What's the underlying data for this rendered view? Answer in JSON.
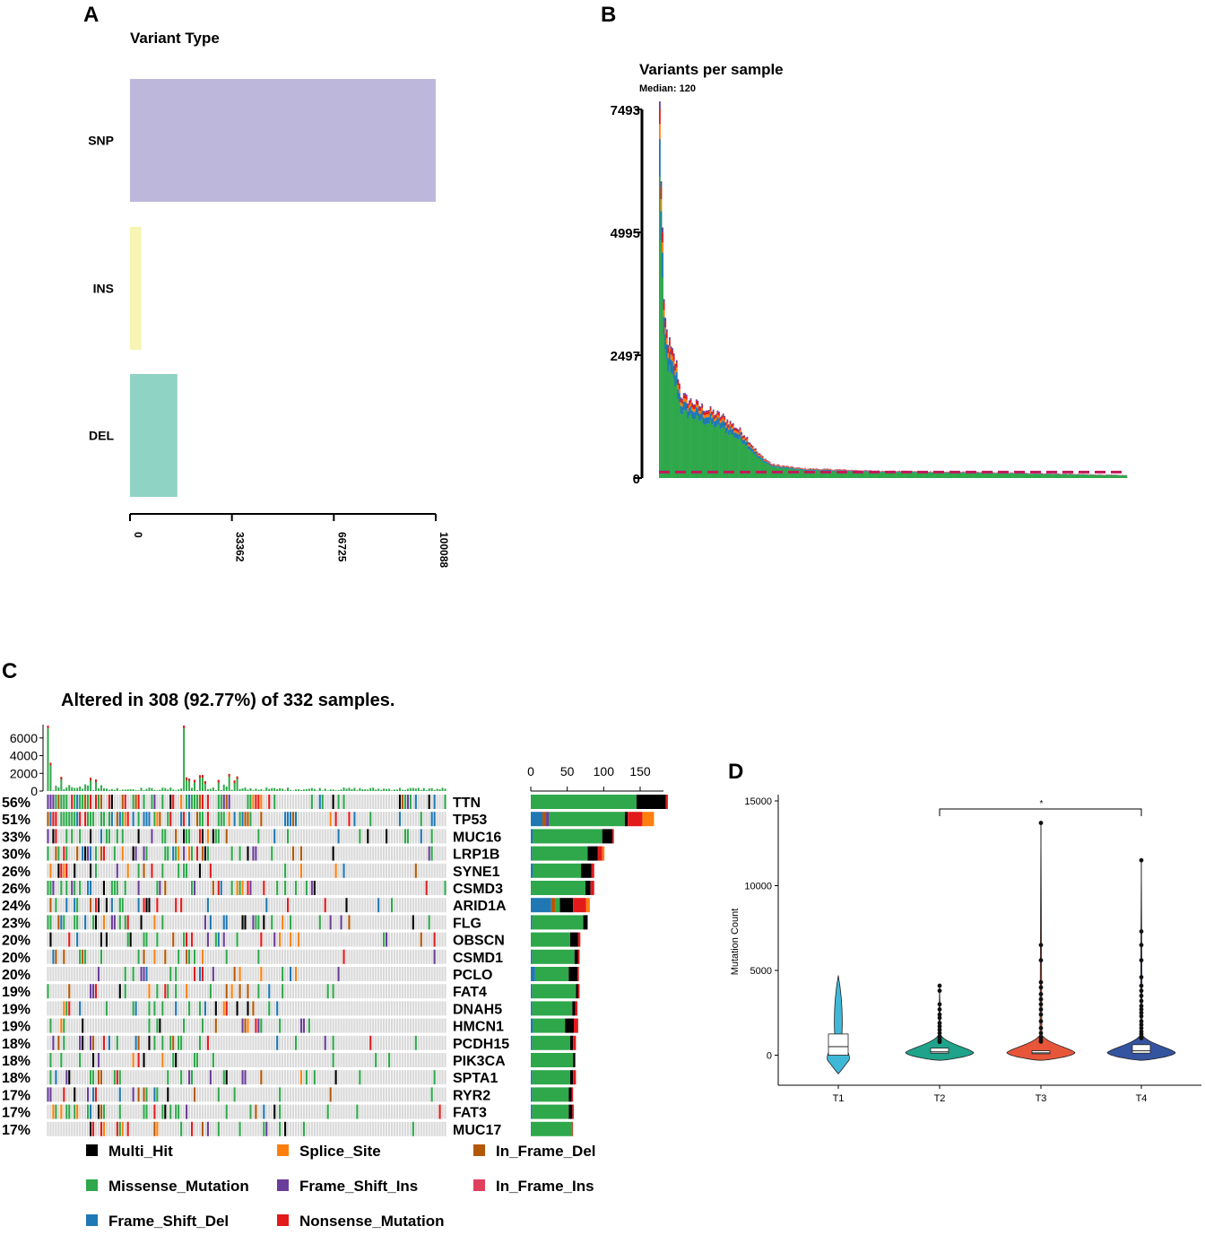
{
  "panels": {
    "a": {
      "letter": "A"
    },
    "b": {
      "letter": "B"
    },
    "c": {
      "letter": "C"
    },
    "d": {
      "letter": "D"
    }
  },
  "chart_data": [
    {
      "id": "variant-type",
      "type": "bar",
      "orientation": "horizontal",
      "title": "Variant Type",
      "categories": [
        "SNP",
        "INS",
        "DEL"
      ],
      "values": [
        100088,
        3700,
        15500
      ],
      "colors": [
        "#bdb8db",
        "#f7f5b3",
        "#8fd3c5"
      ],
      "xticks": [
        0,
        33362,
        66725,
        100088
      ],
      "xlim": [
        0,
        100088
      ]
    },
    {
      "id": "variants-per-sample",
      "type": "bar",
      "title": "Variants per sample",
      "subtitle": "Median: 120",
      "yticks": [
        0,
        2497,
        4995,
        7493
      ],
      "ylim": [
        0,
        7493
      ],
      "median": 120,
      "n_samples": 332,
      "profile": [
        [
          0,
          7493
        ],
        [
          1,
          6200
        ],
        [
          2,
          5000
        ],
        [
          3,
          3400
        ],
        [
          5,
          2950
        ],
        [
          8,
          2600
        ],
        [
          12,
          2300
        ],
        [
          15,
          1700
        ],
        [
          20,
          1600
        ],
        [
          30,
          1450
        ],
        [
          45,
          1250
        ],
        [
          60,
          900
        ],
        [
          70,
          500
        ],
        [
          80,
          280
        ],
        [
          100,
          200
        ],
        [
          150,
          150
        ],
        [
          250,
          110
        ],
        [
          332,
          60
        ]
      ],
      "stack_colors": [
        "#2ea84a",
        "#1f78b4",
        "#ff7f0e",
        "#e31a1c",
        "#6a3d9a"
      ]
    },
    {
      "id": "oncoplot",
      "type": "heatmap",
      "title": "Altered in 308 (92.77%) of 332 samples.",
      "tmb_yticks": [
        0,
        2000,
        4000,
        6000
      ],
      "gene_bar_xticks": [
        0,
        50,
        100,
        150
      ],
      "genes": [
        {
          "name": "TTN",
          "pct": "56%",
          "freq": 0.56,
          "counts": {
            "Missense_Mutation": 145,
            "Multi_Hit": 40,
            "Nonsense_Mutation": 3
          }
        },
        {
          "name": "TP53",
          "pct": "51%",
          "freq": 0.51,
          "counts": {
            "Frame_Shift_Del": 16,
            "In_Frame_Del": 5,
            "Frame_Shift_Ins": 4,
            "Missense_Mutation": 104,
            "Multi_Hit": 4,
            "Nonsense_Mutation": 20,
            "Splice_Site": 16
          }
        },
        {
          "name": "MUC16",
          "pct": "33%",
          "freq": 0.33,
          "counts": {
            "Frame_Shift_Del": 3,
            "Missense_Mutation": 95,
            "Multi_Hit": 14,
            "Nonsense_Mutation": 2
          }
        },
        {
          "name": "LRP1B",
          "pct": "30%",
          "freq": 0.3,
          "counts": {
            "Frame_Shift_Del": 2,
            "Missense_Mutation": 76,
            "Multi_Hit": 14,
            "Nonsense_Mutation": 6,
            "Splice_Site": 3
          }
        },
        {
          "name": "SYNE1",
          "pct": "26%",
          "freq": 0.26,
          "counts": {
            "Frame_Shift_Del": 3,
            "Missense_Mutation": 66,
            "Multi_Hit": 14,
            "Nonsense_Mutation": 4
          }
        },
        {
          "name": "CSMD3",
          "pct": "26%",
          "freq": 0.26,
          "counts": {
            "Missense_Mutation": 75,
            "Multi_Hit": 7,
            "Nonsense_Mutation": 5
          }
        },
        {
          "name": "ARID1A",
          "pct": "24%",
          "freq": 0.24,
          "counts": {
            "Frame_Shift_Del": 28,
            "In_Frame_Del": 6,
            "Missense_Mutation": 6,
            "Multi_Hit": 18,
            "Nonsense_Mutation": 18,
            "Splice_Site": 5
          }
        },
        {
          "name": "FLG",
          "pct": "23%",
          "freq": 0.23,
          "counts": {
            "Frame_Shift_Del": 2,
            "Missense_Mutation": 70,
            "Multi_Hit": 6
          }
        },
        {
          "name": "OBSCN",
          "pct": "20%",
          "freq": 0.2,
          "counts": {
            "Missense_Mutation": 54,
            "Multi_Hit": 11,
            "Nonsense_Mutation": 3
          }
        },
        {
          "name": "CSMD1",
          "pct": "20%",
          "freq": 0.2,
          "counts": {
            "Frame_Shift_Del": 2,
            "Missense_Mutation": 58,
            "Multi_Hit": 5,
            "Nonsense_Mutation": 2
          }
        },
        {
          "name": "PCLO",
          "pct": "20%",
          "freq": 0.2,
          "counts": {
            "Frame_Shift_Del": 6,
            "Missense_Mutation": 46,
            "Multi_Hit": 12,
            "Nonsense_Mutation": 2
          }
        },
        {
          "name": "FAT4",
          "pct": "19%",
          "freq": 0.19,
          "counts": {
            "Frame_Shift_Del": 2,
            "Missense_Mutation": 60,
            "Multi_Hit": 3,
            "Nonsense_Mutation": 2
          }
        },
        {
          "name": "DNAH5",
          "pct": "19%",
          "freq": 0.19,
          "counts": {
            "Frame_Shift_Del": 2,
            "Missense_Mutation": 55,
            "Multi_Hit": 4,
            "Nonsense_Mutation": 3
          }
        },
        {
          "name": "HMCN1",
          "pct": "19%",
          "freq": 0.19,
          "counts": {
            "Frame_Shift_Del": 3,
            "Missense_Mutation": 44,
            "Multi_Hit": 12,
            "Nonsense_Mutation": 6
          }
        },
        {
          "name": "PCDH15",
          "pct": "18%",
          "freq": 0.18,
          "counts": {
            "Frame_Shift_Del": 2,
            "Missense_Mutation": 52,
            "Multi_Hit": 4,
            "Nonsense_Mutation": 4
          }
        },
        {
          "name": "PIK3CA",
          "pct": "18%",
          "freq": 0.18,
          "counts": {
            "Missense_Mutation": 58,
            "Multi_Hit": 3
          }
        },
        {
          "name": "SPTA1",
          "pct": "18%",
          "freq": 0.18,
          "counts": {
            "Frame_Shift_Del": 2,
            "Missense_Mutation": 52,
            "Multi_Hit": 4,
            "Nonsense_Mutation": 4
          }
        },
        {
          "name": "RYR2",
          "pct": "17%",
          "freq": 0.17,
          "counts": {
            "Frame_Shift_Del": 2,
            "Missense_Mutation": 50,
            "Multi_Hit": 4,
            "Nonsense_Mutation": 2
          }
        },
        {
          "name": "FAT3",
          "pct": "17%",
          "freq": 0.17,
          "counts": {
            "Frame_Shift_Del": 2,
            "Missense_Mutation": 50,
            "Multi_Hit": 5,
            "Nonsense_Mutation": 2
          }
        },
        {
          "name": "MUC17",
          "pct": "17%",
          "freq": 0.17,
          "counts": {
            "Frame_Shift_Del": 1,
            "Missense_Mutation": 56,
            "Nonsense_Mutation": 1
          }
        }
      ],
      "legend": [
        {
          "label": "Multi_Hit",
          "color": "#000000"
        },
        {
          "label": "Splice_Site",
          "color": "#ff7f0e"
        },
        {
          "label": "In_Frame_Del",
          "color": "#b35806"
        },
        {
          "label": "Missense_Mutation",
          "color": "#2ea84a"
        },
        {
          "label": "Frame_Shift_Ins",
          "color": "#6a3d9a"
        },
        {
          "label": "In_Frame_Ins",
          "color": "#e0405e"
        },
        {
          "label": "Frame_Shift_Del",
          "color": "#1f78b4"
        },
        {
          "label": "Nonsense_Mutation",
          "color": "#e31a1c"
        }
      ]
    },
    {
      "id": "mutation-count",
      "type": "violin",
      "ylabel": "Mutation Count",
      "categories": [
        "T1",
        "T2",
        "T3",
        "T4"
      ],
      "yticks": [
        0,
        5000,
        10000,
        15000
      ],
      "ylim": [
        -1500,
        15500
      ],
      "colors": [
        "#3fb8d8",
        "#1fa38b",
        "#e8563a",
        "#3454a0"
      ],
      "box": [
        {
          "q1": 0,
          "median": 500,
          "q3": 1250
        },
        {
          "q1": 120,
          "median": 200,
          "q3": 420
        },
        {
          "q1": 80,
          "median": 140,
          "q3": 260
        },
        {
          "q1": 120,
          "median": 260,
          "q3": 620
        }
      ],
      "max": [
        4700,
        4100,
        13700,
        11500
      ],
      "outliers": [
        [],
        [
          4100,
          3800,
          3000,
          2700,
          2400,
          2200,
          1900,
          1700,
          1500,
          1300,
          1100,
          950,
          850,
          780
        ],
        [
          13700,
          6500,
          5600,
          4300,
          4000,
          3600,
          3300,
          3000,
          2700,
          2400,
          2000,
          1600,
          1300,
          1050,
          900,
          800
        ],
        [
          11500,
          7300,
          6500,
          5600,
          4600,
          4100,
          3800,
          3500,
          3200,
          2900,
          2700,
          2500,
          2300,
          2000,
          1800,
          1600,
          1400,
          1250,
          1100,
          1000
        ]
      ],
      "comparison": {
        "from": "T2",
        "to": "T4",
        "label": "*"
      }
    }
  ]
}
